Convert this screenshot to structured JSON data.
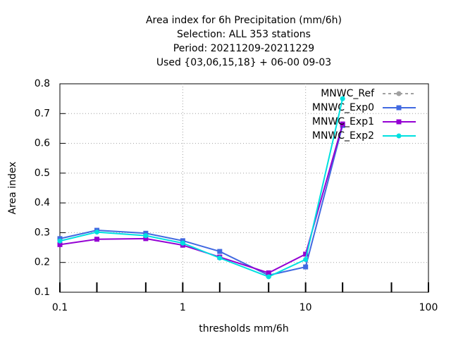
{
  "chart_data": {
    "type": "line",
    "title": [
      "Area index  for 6h Precipitation (mm/6h)",
      "Selection: ALL    353 stations",
      "Period: 20211209-20211229",
      "Used {03,06,15,18} + 06-00 09-03"
    ],
    "xlabel": "thresholds mm/6h",
    "ylabel": "Area index",
    "x": [
      0.1,
      0.2,
      0.5,
      1,
      2,
      5,
      10,
      20
    ],
    "series": [
      {
        "name": "MNWC_Ref",
        "color": "#a0a0a0",
        "marker": "circle",
        "dash": true,
        "values": [
          null,
          null,
          null,
          null,
          null,
          null,
          null,
          null
        ]
      },
      {
        "name": "MNWC_Exp0",
        "color": "#4169e1",
        "marker": "square",
        "values": [
          0.28,
          0.308,
          0.298,
          0.273,
          0.237,
          0.157,
          0.185,
          0.66
        ]
      },
      {
        "name": "MNWC_Exp1",
        "color": "#9400d3",
        "marker": "square",
        "values": [
          0.26,
          0.278,
          0.28,
          0.258,
          0.218,
          0.165,
          0.228,
          0.665
        ]
      },
      {
        "name": "MNWC_Exp2",
        "color": "#00e0e0",
        "marker": "circle",
        "values": [
          0.272,
          0.302,
          0.29,
          0.265,
          0.215,
          0.152,
          0.21,
          0.75
        ]
      }
    ],
    "xlog": true,
    "xlim": [
      0.1,
      100
    ],
    "xticks": [
      0.1,
      1,
      10,
      100
    ],
    "xminorticks": [
      0.2,
      0.5,
      2,
      5,
      20,
      50
    ],
    "ylim": [
      0.1,
      0.8
    ],
    "yticks": [
      0.1,
      0.2,
      0.3,
      0.4,
      0.5,
      0.6,
      0.7,
      0.8
    ],
    "grid": true,
    "legend": "top-right"
  }
}
